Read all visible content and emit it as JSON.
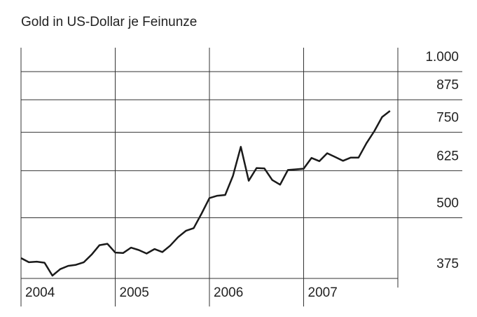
{
  "chart_data": {
    "type": "line",
    "title": "Gold in US-Dollar je Feinunze",
    "x": [
      2004.0,
      2004.083,
      2004.167,
      2004.25,
      2004.333,
      2004.417,
      2004.5,
      2004.583,
      2004.667,
      2004.75,
      2004.833,
      2004.917,
      2005.0,
      2005.083,
      2005.167,
      2005.25,
      2005.333,
      2005.417,
      2005.5,
      2005.583,
      2005.667,
      2005.75,
      2005.833,
      2005.917,
      2006.0,
      2006.083,
      2006.167,
      2006.25,
      2006.333,
      2006.417,
      2006.5,
      2006.583,
      2006.667,
      2006.75,
      2006.833,
      2006.917,
      2007.0,
      2007.083,
      2007.167,
      2007.25,
      2007.333,
      2007.417,
      2007.5,
      2007.583,
      2007.667,
      2007.75,
      2007.833,
      2007.917
    ],
    "series": [
      {
        "color": "#1a1a1a",
        "values": [
          413,
          405,
          406,
          404,
          380,
          392,
          398,
          400,
          405,
          420,
          439,
          442,
          424,
          423,
          434,
          429,
          422,
          431,
          425,
          438,
          456,
          470,
          476,
          510,
          549,
          555,
          557,
          610,
          700,
          596,
          633,
          632,
          598,
          585,
          627,
          629,
          631,
          664,
          654,
          679,
          667,
          655,
          665,
          665,
          712,
          754,
          806,
          830
        ]
      }
    ],
    "xlim": [
      2004,
      2008
    ],
    "xticks": [
      2004,
      2005,
      2006,
      2007
    ],
    "ylim": [
      375,
      1120
    ],
    "log_y": true,
    "grid": true,
    "yticks": [
      375,
      500,
      625,
      750,
      875,
      {
        "value": 1000,
        "label": "1.000"
      }
    ]
  }
}
